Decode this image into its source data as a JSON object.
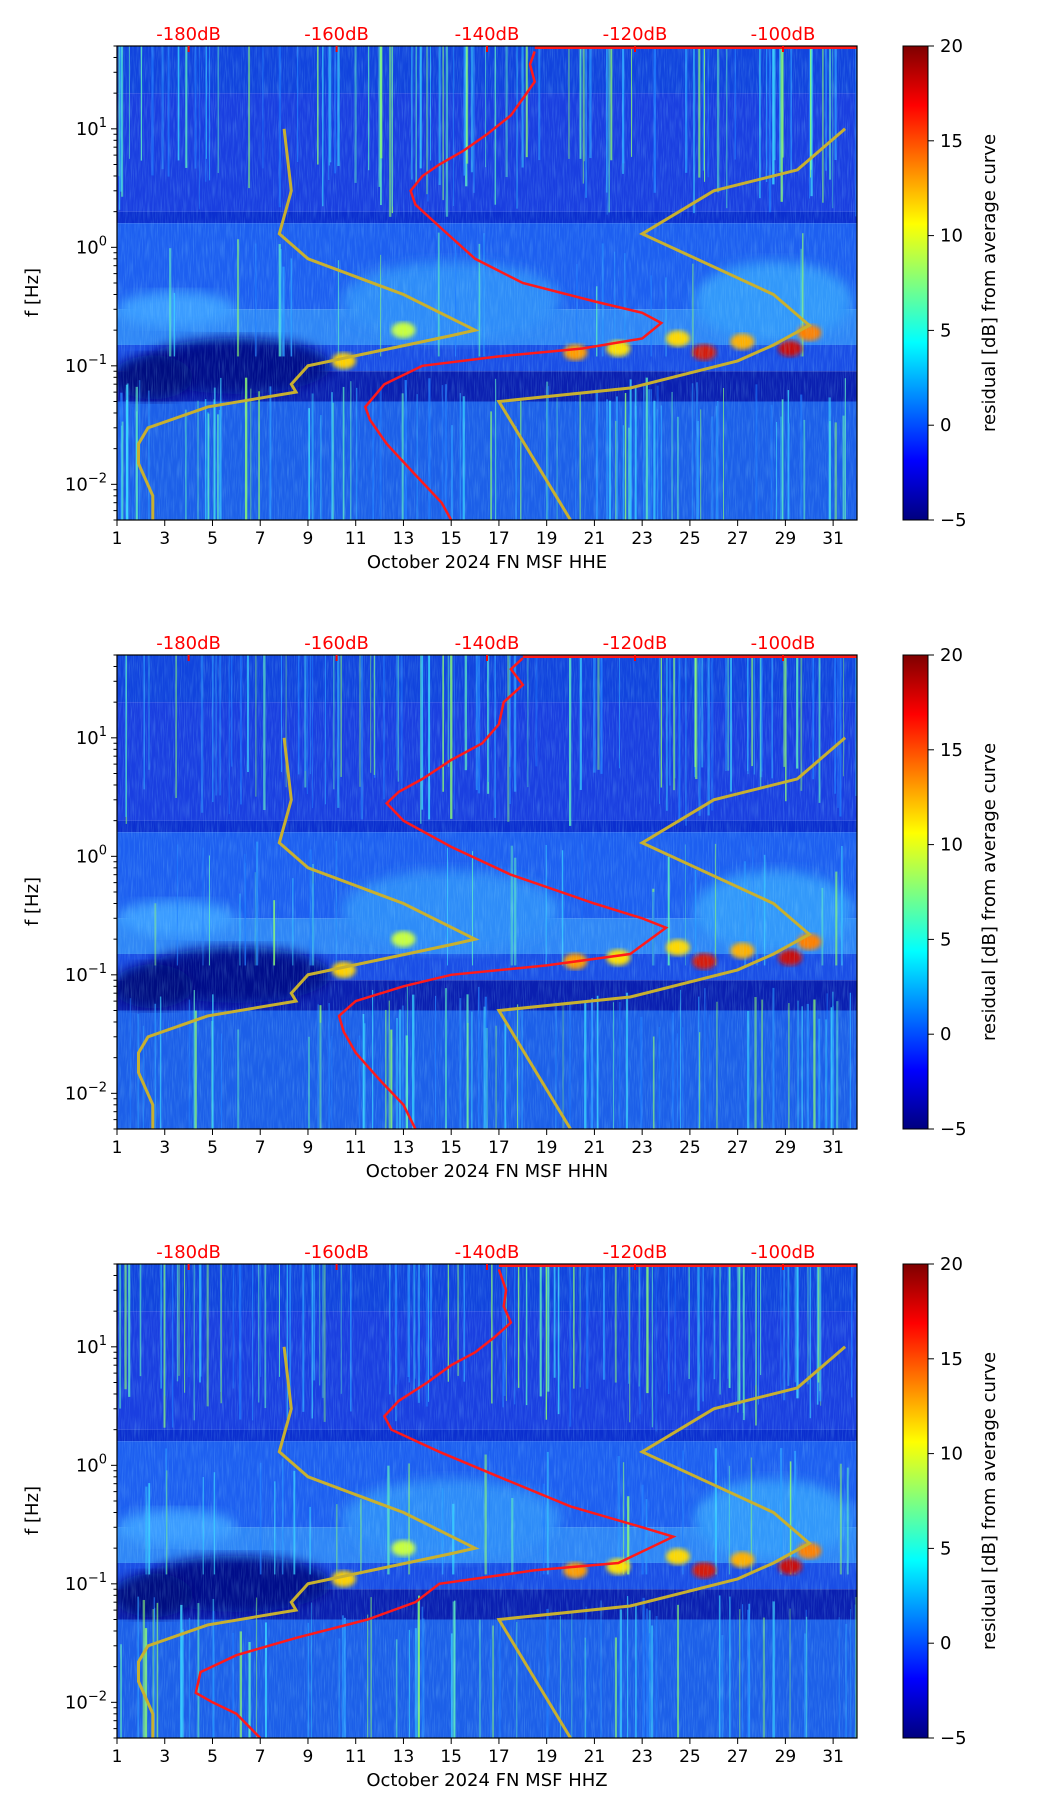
{
  "palette": {
    "jet": [
      "#00007f",
      "#0000ff",
      "#007fff",
      "#00ffff",
      "#7fff7f",
      "#ffff00",
      "#ff7f00",
      "#ff0000",
      "#7f0000"
    ],
    "psd_curve": "#ff1a1a",
    "noise_model": "#c8b030",
    "db_labels": "#ff0000",
    "axis": "#000000"
  },
  "colorbar": {
    "label": "residual [dB] from average curve",
    "range": [
      -5,
      20
    ],
    "ticks": [
      "−5",
      "0",
      "5",
      "10",
      "15",
      "20"
    ],
    "tick_values": [
      -5,
      0,
      5,
      10,
      15,
      20
    ]
  },
  "chart_data": [
    {
      "type": "heatmap",
      "xlabel": "October 2024 FN MSF  HHE",
      "ylabel": "f [Hz]",
      "xlim": [
        1,
        32
      ],
      "xticks": [
        1,
        3,
        5,
        7,
        9,
        11,
        13,
        15,
        17,
        19,
        21,
        23,
        25,
        27,
        29,
        31
      ],
      "ylim": [
        0.005,
        50
      ],
      "yscale": "log",
      "yticks": [
        {
          "value": 0.01,
          "base": "10",
          "exp": "−2"
        },
        {
          "value": 0.1,
          "base": "10",
          "exp": "−1"
        },
        {
          "value": 1,
          "base": "10",
          "exp": "0"
        },
        {
          "value": 10,
          "base": "10",
          "exp": "1"
        }
      ],
      "top_axis_labels": [
        "-180dB",
        "-160dB",
        "-140dB",
        "-120dB",
        "-100dB"
      ],
      "top_axis_positions_day": [
        4.0,
        10.2,
        16.5,
        22.7,
        28.9
      ],
      "psd_curve": [
        [
          15.0,
          0.005
        ],
        [
          14.6,
          0.007
        ],
        [
          13.5,
          0.012
        ],
        [
          12.3,
          0.022
        ],
        [
          11.6,
          0.035
        ],
        [
          11.4,
          0.045
        ],
        [
          12.2,
          0.07
        ],
        [
          13.8,
          0.1
        ],
        [
          17.0,
          0.12
        ],
        [
          20.5,
          0.14
        ],
        [
          23.0,
          0.17
        ],
        [
          23.8,
          0.23
        ],
        [
          23.0,
          0.28
        ],
        [
          21.0,
          0.35
        ],
        [
          18.0,
          0.5
        ],
        [
          16.0,
          0.8
        ],
        [
          14.5,
          1.5
        ],
        [
          13.5,
          2.3
        ],
        [
          13.3,
          3.0
        ],
        [
          13.8,
          4.0
        ],
        [
          14.5,
          5.0
        ],
        [
          15.5,
          6.5
        ],
        [
          16.5,
          9.0
        ],
        [
          17.5,
          13.0
        ],
        [
          18.0,
          18.0
        ],
        [
          18.5,
          25.0
        ],
        [
          18.3,
          35.0
        ],
        [
          18.5,
          45.0
        ]
      ],
      "noise_models": {
        "low": [
          [
            2.5,
            0.005
          ],
          [
            2.5,
            0.008
          ],
          [
            1.9,
            0.015
          ],
          [
            1.9,
            0.022
          ],
          [
            2.3,
            0.03
          ],
          [
            4.8,
            0.045
          ],
          [
            8.5,
            0.06
          ],
          [
            8.3,
            0.07
          ],
          [
            9.0,
            0.1
          ],
          [
            15.0,
            0.18
          ],
          [
            16.0,
            0.2
          ],
          [
            13.0,
            0.4
          ],
          [
            9.0,
            0.8
          ],
          [
            7.8,
            1.3
          ],
          [
            8.3,
            3.0
          ],
          [
            8.0,
            10.0
          ]
        ],
        "high": [
          [
            20.0,
            0.005
          ],
          [
            17.0,
            0.05
          ],
          [
            22.5,
            0.065
          ],
          [
            27.0,
            0.11
          ],
          [
            28.5,
            0.15
          ],
          [
            30.0,
            0.22
          ],
          [
            28.5,
            0.4
          ],
          [
            23.0,
            1.3
          ],
          [
            26.0,
            3.0
          ],
          [
            29.5,
            4.5
          ],
          [
            31.5,
            10.0
          ]
        ]
      }
    },
    {
      "type": "heatmap",
      "xlabel": "October 2024 FN MSF  HHN",
      "ylabel": "f [Hz]",
      "xlim": [
        1,
        32
      ],
      "xticks": [
        1,
        3,
        5,
        7,
        9,
        11,
        13,
        15,
        17,
        19,
        21,
        23,
        25,
        27,
        29,
        31
      ],
      "ylim": [
        0.005,
        50
      ],
      "yscale": "log",
      "yticks": [
        {
          "value": 0.01,
          "base": "10",
          "exp": "−2"
        },
        {
          "value": 0.1,
          "base": "10",
          "exp": "−1"
        },
        {
          "value": 1,
          "base": "10",
          "exp": "0"
        },
        {
          "value": 10,
          "base": "10",
          "exp": "1"
        }
      ],
      "top_axis_labels": [
        "-180dB",
        "-160dB",
        "-140dB",
        "-120dB",
        "-100dB"
      ],
      "top_axis_positions_day": [
        4.0,
        10.2,
        16.5,
        22.7,
        28.9
      ],
      "psd_curve": [
        [
          13.5,
          0.005
        ],
        [
          13.0,
          0.008
        ],
        [
          12.0,
          0.013
        ],
        [
          11.0,
          0.022
        ],
        [
          10.5,
          0.033
        ],
        [
          10.3,
          0.045
        ],
        [
          11.0,
          0.06
        ],
        [
          13.0,
          0.08
        ],
        [
          15.0,
          0.1
        ],
        [
          19.0,
          0.12
        ],
        [
          22.5,
          0.15
        ],
        [
          24.0,
          0.25
        ],
        [
          23.0,
          0.3
        ],
        [
          21.0,
          0.4
        ],
        [
          17.5,
          0.7
        ],
        [
          15.0,
          1.2
        ],
        [
          13.0,
          2.0
        ],
        [
          12.3,
          2.8
        ],
        [
          12.8,
          3.5
        ],
        [
          13.8,
          4.5
        ],
        [
          15.0,
          6.5
        ],
        [
          16.3,
          9.0
        ],
        [
          17.0,
          13.0
        ],
        [
          17.2,
          20.0
        ],
        [
          18.0,
          28.0
        ],
        [
          17.5,
          38.0
        ],
        [
          18.0,
          47.0
        ]
      ],
      "noise_models": {
        "low": [
          [
            2.5,
            0.005
          ],
          [
            2.5,
            0.008
          ],
          [
            1.9,
            0.015
          ],
          [
            1.9,
            0.022
          ],
          [
            2.3,
            0.03
          ],
          [
            4.8,
            0.045
          ],
          [
            8.5,
            0.06
          ],
          [
            8.3,
            0.07
          ],
          [
            9.0,
            0.1
          ],
          [
            15.0,
            0.18
          ],
          [
            16.0,
            0.2
          ],
          [
            13.0,
            0.4
          ],
          [
            9.0,
            0.8
          ],
          [
            7.8,
            1.3
          ],
          [
            8.3,
            3.0
          ],
          [
            8.0,
            10.0
          ]
        ],
        "high": [
          [
            20.0,
            0.005
          ],
          [
            17.0,
            0.05
          ],
          [
            22.5,
            0.065
          ],
          [
            27.0,
            0.11
          ],
          [
            28.5,
            0.15
          ],
          [
            30.0,
            0.22
          ],
          [
            28.5,
            0.4
          ],
          [
            23.0,
            1.3
          ],
          [
            26.0,
            3.0
          ],
          [
            29.5,
            4.5
          ],
          [
            31.5,
            10.0
          ]
        ]
      }
    },
    {
      "type": "heatmap",
      "xlabel": "October 2024 FN MSF  HHZ",
      "ylabel": "f [Hz]",
      "xlim": [
        1,
        32
      ],
      "xticks": [
        1,
        3,
        5,
        7,
        9,
        11,
        13,
        15,
        17,
        19,
        21,
        23,
        25,
        27,
        29,
        31
      ],
      "ylim": [
        0.005,
        50
      ],
      "yscale": "log",
      "yticks": [
        {
          "value": 0.01,
          "base": "10",
          "exp": "−2"
        },
        {
          "value": 0.1,
          "base": "10",
          "exp": "−1"
        },
        {
          "value": 1,
          "base": "10",
          "exp": "0"
        },
        {
          "value": 10,
          "base": "10",
          "exp": "1"
        }
      ],
      "top_axis_labels": [
        "-180dB",
        "-160dB",
        "-140dB",
        "-120dB",
        "-100dB"
      ],
      "top_axis_positions_day": [
        4.0,
        10.2,
        16.5,
        22.7,
        28.9
      ],
      "psd_curve": [
        [
          7.0,
          0.005
        ],
        [
          6.0,
          0.008
        ],
        [
          5.0,
          0.01
        ],
        [
          4.3,
          0.012
        ],
        [
          4.5,
          0.018
        ],
        [
          6.0,
          0.025
        ],
        [
          8.5,
          0.035
        ],
        [
          11.5,
          0.05
        ],
        [
          13.5,
          0.07
        ],
        [
          14.5,
          0.1
        ],
        [
          18.5,
          0.13
        ],
        [
          22.0,
          0.15
        ],
        [
          24.3,
          0.25
        ],
        [
          23.0,
          0.3
        ],
        [
          20.0,
          0.45
        ],
        [
          17.0,
          0.8
        ],
        [
          14.5,
          1.3
        ],
        [
          12.5,
          2.0
        ],
        [
          12.2,
          2.6
        ],
        [
          12.8,
          3.5
        ],
        [
          14.0,
          5.0
        ],
        [
          15.0,
          7.0
        ],
        [
          16.0,
          9.0
        ],
        [
          16.8,
          12.0
        ],
        [
          17.5,
          16.0
        ],
        [
          17.2,
          22.0
        ],
        [
          17.3,
          30.0
        ],
        [
          17.0,
          45.0
        ]
      ],
      "noise_models": {
        "low": [
          [
            2.5,
            0.005
          ],
          [
            2.5,
            0.008
          ],
          [
            1.9,
            0.015
          ],
          [
            1.9,
            0.022
          ],
          [
            2.3,
            0.03
          ],
          [
            4.8,
            0.045
          ],
          [
            8.5,
            0.06
          ],
          [
            8.3,
            0.07
          ],
          [
            9.0,
            0.1
          ],
          [
            15.0,
            0.18
          ],
          [
            16.0,
            0.2
          ],
          [
            13.0,
            0.4
          ],
          [
            9.0,
            0.8
          ],
          [
            7.8,
            1.3
          ],
          [
            8.3,
            3.0
          ],
          [
            8.0,
            10.0
          ]
        ],
        "high": [
          [
            20.0,
            0.005
          ],
          [
            17.0,
            0.05
          ],
          [
            22.5,
            0.065
          ],
          [
            27.0,
            0.11
          ],
          [
            28.5,
            0.15
          ],
          [
            30.0,
            0.22
          ],
          [
            28.5,
            0.4
          ],
          [
            23.0,
            1.3
          ],
          [
            26.0,
            3.0
          ],
          [
            29.5,
            4.5
          ],
          [
            31.5,
            10.0
          ]
        ]
      }
    }
  ]
}
